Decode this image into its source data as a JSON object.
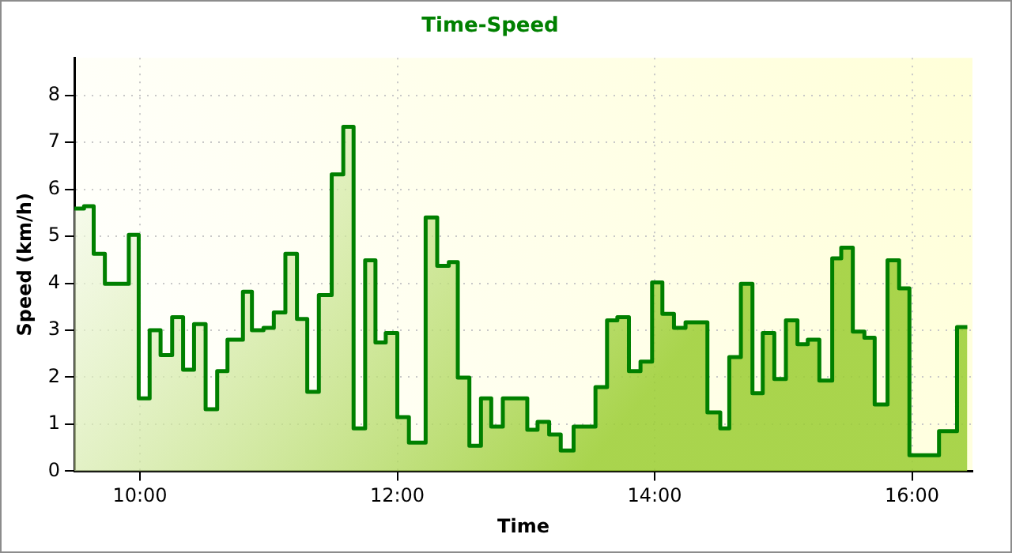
{
  "chart_data": {
    "type": "area",
    "title": "Time-Speed",
    "xlabel": "Time",
    "ylabel": "Speed (km/h)",
    "xlim": [
      9.49,
      16.47
    ],
    "xticks": [
      {
        "value": 10,
        "label": "10:00"
      },
      {
        "value": 12,
        "label": "12:00"
      },
      {
        "value": 14,
        "label": "14:00"
      },
      {
        "value": 16,
        "label": "16:00"
      }
    ],
    "ylim": [
      0,
      8.8
    ],
    "yticks": [
      0,
      1,
      2,
      3,
      4,
      5,
      6,
      7,
      8
    ],
    "grid": true,
    "legend": false,
    "marker": "none",
    "line_style": "solid",
    "series": [
      {
        "color": "#008000",
        "x": [
          9.49,
          9.565,
          9.565,
          9.64,
          9.64,
          9.727,
          9.727,
          9.913,
          9.913,
          9.99,
          9.99,
          10.075,
          10.075,
          10.16,
          10.16,
          10.25,
          10.25,
          10.335,
          10.335,
          10.42,
          10.42,
          10.51,
          10.51,
          10.6,
          10.6,
          10.68,
          10.68,
          10.8,
          10.8,
          10.87,
          10.87,
          10.96,
          10.96,
          11.04,
          11.04,
          11.13,
          11.13,
          11.22,
          11.22,
          11.3,
          11.3,
          11.39,
          11.39,
          11.49,
          11.49,
          11.58,
          11.58,
          11.66,
          11.66,
          11.75,
          11.75,
          11.83,
          11.83,
          11.91,
          11.91,
          12.0,
          12.0,
          12.09,
          12.09,
          12.22,
          12.22,
          12.31,
          12.31,
          12.4,
          12.4,
          12.47,
          12.47,
          12.56,
          12.56,
          12.65,
          12.65,
          12.73,
          12.73,
          12.82,
          12.82,
          13.01,
          13.01,
          13.09,
          13.09,
          13.18,
          13.18,
          13.27,
          13.27,
          13.37,
          13.37,
          13.54,
          13.54,
          13.63,
          13.63,
          13.71,
          13.71,
          13.8,
          13.8,
          13.89,
          13.89,
          13.98,
          13.98,
          14.06,
          14.06,
          14.15,
          14.15,
          14.24,
          14.24,
          14.41,
          14.41,
          14.51,
          14.51,
          14.58,
          14.58,
          14.67,
          14.67,
          14.76,
          14.76,
          14.84,
          14.84,
          14.93,
          14.93,
          15.02,
          15.02,
          15.11,
          15.11,
          15.19,
          15.19,
          15.28,
          15.28,
          15.38,
          15.38,
          15.45,
          15.45,
          15.54,
          15.54,
          15.63,
          15.63,
          15.71,
          15.71,
          15.81,
          15.81,
          15.9,
          15.9,
          15.98,
          15.98,
          16.21,
          16.21,
          16.35,
          16.35,
          16.43
        ],
        "values": [
          5.59,
          5.59,
          5.64,
          5.64,
          4.63,
          4.63,
          3.99,
          3.99,
          5.03,
          5.03,
          1.55,
          1.55,
          3.0,
          3.0,
          2.47,
          2.47,
          3.28,
          3.28,
          2.16,
          2.16,
          3.13,
          3.13,
          1.32,
          1.32,
          2.13,
          2.13,
          2.8,
          2.8,
          3.82,
          3.82,
          3.0,
          3.0,
          3.05,
          3.05,
          3.38,
          3.38,
          4.63,
          4.63,
          3.24,
          3.24,
          1.69,
          1.69,
          3.75,
          3.75,
          6.32,
          6.32,
          7.33,
          7.33,
          0.91,
          0.91,
          4.49,
          4.49,
          2.74,
          2.74,
          2.94,
          2.94,
          1.15,
          1.15,
          0.61,
          0.61,
          5.4,
          5.4,
          4.37,
          4.37,
          4.45,
          4.45,
          1.99,
          1.99,
          0.54,
          0.54,
          1.55,
          1.55,
          0.95,
          0.95,
          1.55,
          1.55,
          0.88,
          0.88,
          1.05,
          1.05,
          0.78,
          0.78,
          0.44,
          0.44,
          0.95,
          0.95,
          1.79,
          1.79,
          3.21,
          3.21,
          3.28,
          3.28,
          2.13,
          2.13,
          2.33,
          2.33,
          4.02,
          4.02,
          3.35,
          3.35,
          3.05,
          3.05,
          3.17,
          3.17,
          1.25,
          1.25,
          0.91,
          0.91,
          2.43,
          2.43,
          3.99,
          3.99,
          1.66,
          1.66,
          2.94,
          2.94,
          1.96,
          1.96,
          3.21,
          3.21,
          2.7,
          2.7,
          2.8,
          2.8,
          1.93,
          1.93,
          4.53,
          4.53,
          4.76,
          4.76,
          2.97,
          2.97,
          2.84,
          2.84,
          1.42,
          1.42,
          4.49,
          4.49,
          3.89,
          3.89,
          0.34,
          0.34,
          0.85,
          0.85,
          3.07,
          3.07
        ]
      }
    ]
  }
}
